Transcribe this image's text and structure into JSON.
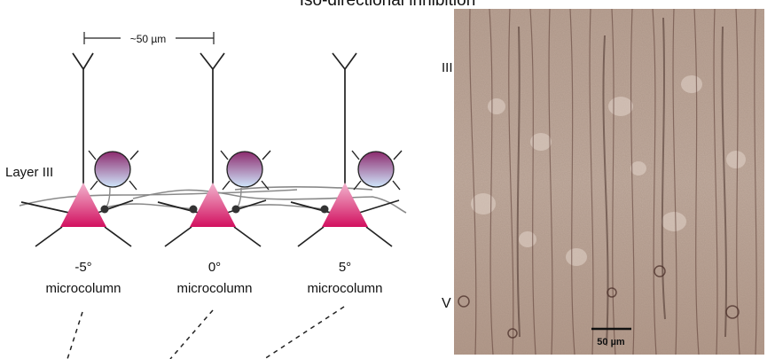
{
  "header": {
    "title": "Iso-directional inhibition"
  },
  "diagram": {
    "scale_label": "~50 µm",
    "layer_label": "Layer III",
    "columns": [
      {
        "angle": "-5°",
        "name": "microcolumn"
      },
      {
        "angle": "0°",
        "name": "microcolumn"
      },
      {
        "angle": "5°",
        "name": "microcolumn"
      }
    ]
  },
  "micrograph": {
    "layer_top": "III",
    "layer_bottom": "V",
    "scale_bar": "50 µm"
  },
  "colors": {
    "pyramidal_top": "#f2b6cf",
    "pyramidal_bottom": "#d2105f",
    "interneuron_top": "#8c2a6e",
    "interneuron_bottom": "#cfe6fb",
    "tissue": "#b49c8c"
  }
}
